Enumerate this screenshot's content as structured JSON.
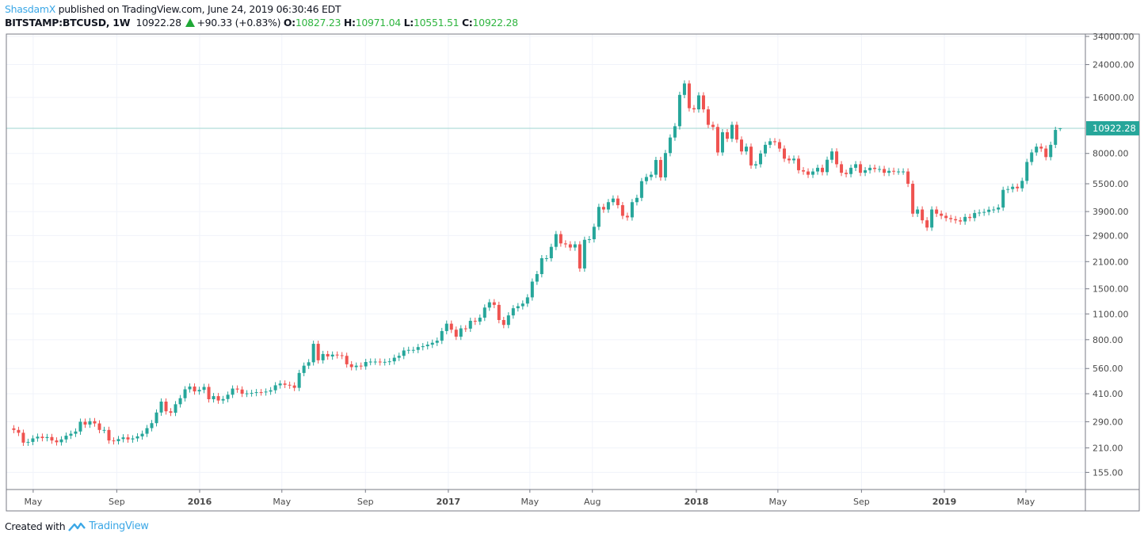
{
  "header": {
    "user": "ShasdamX",
    "published": "published on TradingView.com, June 24, 2019 06:30:46 EDT",
    "symbol": "BITSTAMP:BTCUSD, 1W",
    "last": "10922.28",
    "change": "+90.33 (+0.83%)",
    "o_label": "O:",
    "o": "10827.23",
    "h_label": "H:",
    "h": "10971.04",
    "l_label": "L:",
    "l": "10551.51",
    "c_label": "C:",
    "c": "10922.28"
  },
  "footer": {
    "created_with": "Created with",
    "brand": "TradingView"
  },
  "chart_data": {
    "type": "candlestick",
    "interval": "1W",
    "y_scale": "log",
    "ylim": [
      130,
      38000
    ],
    "grid": true,
    "x_start": "2015-03-30",
    "last_price_label": "10922.28",
    "colors": {
      "up": "#26a69a",
      "down": "#ef5350",
      "price_line": "#26a69a"
    },
    "y_ticks": [
      34000,
      24000,
      16000,
      8000,
      5500,
      3900,
      2900,
      2100,
      1500,
      1100,
      800,
      560,
      410,
      290,
      210,
      155
    ],
    "y_tick_labels": [
      "34000.00",
      "24000.00",
      "16000.00",
      "8000.00",
      "5500.00",
      "3900.00",
      "2900.00",
      "2100.00",
      "1500.00",
      "1100.00",
      "800.00",
      "560.00",
      "410.00",
      "290.00",
      "210.00",
      "155.00"
    ],
    "x_ticks": [
      {
        "date": "2015-05-01",
        "label": "May",
        "bold": false
      },
      {
        "date": "2015-09-01",
        "label": "Sep",
        "bold": false
      },
      {
        "date": "2016-01-01",
        "label": "2016",
        "bold": true
      },
      {
        "date": "2016-05-01",
        "label": "May",
        "bold": false
      },
      {
        "date": "2016-09-01",
        "label": "Sep",
        "bold": false
      },
      {
        "date": "2017-01-01",
        "label": "2017",
        "bold": true
      },
      {
        "date": "2017-05-01",
        "label": "May",
        "bold": false
      },
      {
        "date": "2017-08-01",
        "label": "Aug",
        "bold": false
      },
      {
        "date": "2018-01-01",
        "label": "2018",
        "bold": true
      },
      {
        "date": "2018-05-01",
        "label": "May",
        "bold": false
      },
      {
        "date": "2018-09-01",
        "label": "Sep",
        "bold": false
      },
      {
        "date": "2019-01-01",
        "label": "2019",
        "bold": true
      },
      {
        "date": "2019-05-01",
        "label": "May",
        "bold": false
      }
    ],
    "last_open": 10827.23,
    "last_high": 10971.04,
    "last_low": 10551.51,
    "closes": [
      262,
      253,
      224,
      226,
      236,
      241,
      237,
      240,
      230,
      225,
      233,
      244,
      250,
      257,
      290,
      280,
      292,
      284,
      262,
      262,
      230,
      228,
      234,
      239,
      233,
      236,
      242,
      250,
      268,
      285,
      325,
      372,
      330,
      324,
      360,
      388,
      433,
      448,
      422,
      430,
      446,
      383,
      398,
      377,
      384,
      405,
      437,
      432,
      410,
      412,
      414,
      418,
      417,
      421,
      428,
      455,
      465,
      458,
      454,
      441,
      530,
      580,
      605,
      760,
      620,
      670,
      650,
      665,
      660,
      655,
      590,
      570,
      580,
      575,
      607,
      610,
      610,
      605,
      608,
      612,
      640,
      655,
      700,
      705,
      705,
      730,
      738,
      752,
      770,
      790,
      890,
      975,
      905,
      830,
      920,
      917,
      1010,
      1000,
      1050,
      1190,
      1270,
      1230,
      1020,
      960,
      1080,
      1180,
      1210,
      1250,
      1350,
      1640,
      1800,
      2190,
      2190,
      2520,
      2950,
      2630,
      2600,
      2500,
      2600,
      1930,
      2750,
      2770,
      3230,
      4130,
      4000,
      4380,
      4580,
      4220,
      3700,
      3630,
      4380,
      4620,
      5680,
      5980,
      6150,
      7380,
      5950,
      8040,
      9740,
      11200,
      16500,
      19000,
      14000,
      13800,
      16400,
      13800,
      11400,
      11100,
      8100,
      10400,
      9600,
      11400,
      9500,
      8200,
      8700,
      6900,
      7000,
      8000,
      8900,
      9300,
      9200,
      8500,
      7500,
      7350,
      7500,
      6500,
      6400,
      6150,
      6400,
      6700,
      6350,
      7400,
      8200,
      7000,
      6300,
      6200,
      6700,
      7000,
      6300,
      6500,
      6700,
      6600,
      6600,
      6300,
      6450,
      6400,
      6400,
      6400,
      5500,
      3800,
      4000,
      3500,
      3200,
      4000,
      3800,
      3700,
      3600,
      3550,
      3500,
      3450,
      3650,
      3600,
      3830,
      3850,
      3880,
      3990,
      4000,
      4100,
      5100,
      5150,
      5300,
      5200,
      5700,
      7200,
      8100,
      8700,
      8500,
      7650,
      8900,
      10700,
      10922.28
    ]
  }
}
